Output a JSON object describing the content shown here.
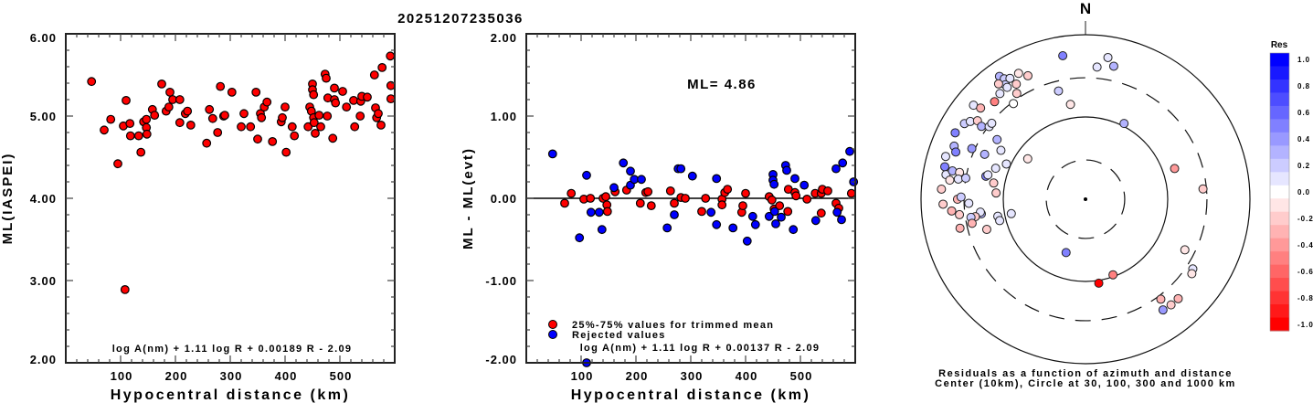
{
  "title": "20251207235036",
  "chart_data": [
    {
      "type": "scatter",
      "name": "magnitude-vs-distance",
      "xlabel": "Hypocentral distance (km)",
      "ylabel": "ML(IASPEI)",
      "xlim": [
        0,
        600
      ],
      "ylim": [
        2.0,
        6.0
      ],
      "xticks": [
        100,
        200,
        300,
        400,
        500
      ],
      "xtick_labels": [
        "100",
        "200",
        "300",
        "400",
        "500"
      ],
      "yticks": [
        2.0,
        3.0,
        4.0,
        5.0,
        6.0
      ],
      "ytick_labels": [
        "2.00",
        "3.00",
        "4.00",
        "5.00",
        "6.00"
      ],
      "formula": "log A(nm) + 1.11 log R + 0.00189 R - 2.09",
      "point_color": "#ff0000",
      "points": [
        [
          47,
          5.42
        ],
        [
          70,
          4.83
        ],
        [
          82,
          4.96
        ],
        [
          95,
          4.42
        ],
        [
          105,
          4.88
        ],
        [
          108,
          2.89
        ],
        [
          110,
          5.19
        ],
        [
          117,
          4.91
        ],
        [
          118,
          4.76
        ],
        [
          133,
          4.76
        ],
        [
          137,
          4.56
        ],
        [
          142,
          4.93
        ],
        [
          147,
          4.96
        ],
        [
          147,
          4.86
        ],
        [
          148,
          4.78
        ],
        [
          158,
          5.08
        ],
        [
          162,
          5.01
        ],
        [
          175,
          5.39
        ],
        [
          183,
          5.06
        ],
        [
          188,
          5.11
        ],
        [
          190,
          5.29
        ],
        [
          195,
          5.2
        ],
        [
          208,
          4.92
        ],
        [
          208,
          5.2
        ],
        [
          218,
          5.03
        ],
        [
          222,
          5.06
        ],
        [
          228,
          4.89
        ],
        [
          257,
          4.67
        ],
        [
          262,
          5.08
        ],
        [
          268,
          4.97
        ],
        [
          277,
          4.8
        ],
        [
          282,
          5.36
        ],
        [
          288,
          5.0
        ],
        [
          290,
          5.01
        ],
        [
          303,
          5.29
        ],
        [
          320,
          4.87
        ],
        [
          325,
          5.03
        ],
        [
          337,
          4.87
        ],
        [
          347,
          5.29
        ],
        [
          350,
          4.72
        ],
        [
          355,
          5.03
        ],
        [
          357,
          4.98
        ],
        [
          362,
          5.11
        ],
        [
          367,
          5.17
        ],
        [
          377,
          4.69
        ],
        [
          393,
          4.93
        ],
        [
          395,
          4.98
        ],
        [
          400,
          5.11
        ],
        [
          402,
          4.56
        ],
        [
          413,
          4.87
        ],
        [
          417,
          4.76
        ],
        [
          442,
          4.87
        ],
        [
          445,
          5.11
        ],
        [
          448,
          5.06
        ],
        [
          450,
          5.39
        ],
        [
          450,
          5.32
        ],
        [
          452,
          5.26
        ],
        [
          452,
          4.98
        ],
        [
          453,
          4.92
        ],
        [
          455,
          4.79
        ],
        [
          462,
          5.01
        ],
        [
          465,
          4.87
        ],
        [
          473,
          5.51
        ],
        [
          475,
          5.46
        ],
        [
          477,
          5.0
        ],
        [
          478,
          5.22
        ],
        [
          487,
          4.73
        ],
        [
          490,
          5.34
        ],
        [
          490,
          5.2
        ],
        [
          492,
          5.16
        ],
        [
          505,
          5.3
        ],
        [
          512,
          5.11
        ],
        [
          525,
          5.19
        ],
        [
          527,
          4.87
        ],
        [
          537,
          5.0
        ],
        [
          538,
          5.18
        ],
        [
          540,
          5.24
        ],
        [
          550,
          5.23
        ],
        [
          563,
          5.5
        ],
        [
          565,
          5.1
        ],
        [
          567,
          4.98
        ],
        [
          570,
          5.03
        ],
        [
          575,
          4.89
        ],
        [
          577,
          5.59
        ],
        [
          592,
          5.73
        ],
        [
          593,
          5.37
        ],
        [
          593,
          5.21
        ]
      ]
    },
    {
      "type": "scatter",
      "name": "residual-vs-distance",
      "xlabel": "Hypocentral distance (km)",
      "ylabel": "ML - ML(evt)",
      "xlim": [
        0,
        600
      ],
      "ylim": [
        -2.0,
        2.0
      ],
      "xticks": [
        100,
        200,
        300,
        400,
        500
      ],
      "xtick_labels": [
        "100",
        "200",
        "300",
        "400",
        "500"
      ],
      "yticks": [
        -2.0,
        -1.0,
        0.0,
        1.0,
        2.0
      ],
      "ytick_labels": [
        "-2.00",
        "-1.00",
        "0.00",
        "1.00",
        "2.00"
      ],
      "annotation": "ML= 4.86",
      "formula": "log A(nm) + 1.11 log R + 0.00137 R - 2.09",
      "legend": [
        {
          "label": "25%-75% values for trimmed mean",
          "color": "#ff0000"
        },
        {
          "label": "Rejected values",
          "color": "#0000ff"
        }
      ],
      "legend_position": "bottom-left",
      "series": [
        {
          "name": "25%-75% values for trimmed mean",
          "color": "#ff0000",
          "points": [
            [
              70,
              -0.06
            ],
            [
              82,
              0.06
            ],
            [
              105,
              -0.01
            ],
            [
              117,
              0.0
            ],
            [
              140,
              0.0
            ],
            [
              145,
              0.02
            ],
            [
              147,
              -0.08
            ],
            [
              148,
              -0.16
            ],
            [
              162,
              0.08
            ],
            [
              183,
              0.1
            ],
            [
              208,
              -0.06
            ],
            [
              218,
              0.07
            ],
            [
              222,
              0.08
            ],
            [
              228,
              -0.09
            ],
            [
              263,
              0.09
            ],
            [
              270,
              -0.06
            ],
            [
              282,
              0.01
            ],
            [
              290,
              0.0
            ],
            [
              320,
              -0.16
            ],
            [
              327,
              0.0
            ],
            [
              357,
              -0.01
            ],
            [
              357,
              -0.08
            ],
            [
              362,
              0.07
            ],
            [
              367,
              0.11
            ],
            [
              393,
              -0.17
            ],
            [
              395,
              -0.09
            ],
            [
              400,
              0.06
            ],
            [
              443,
              0.02
            ],
            [
              448,
              -0.02
            ],
            [
              452,
              -0.13
            ],
            [
              462,
              -0.09
            ],
            [
              477,
              -0.16
            ],
            [
              478,
              0.11
            ],
            [
              490,
              0.07
            ],
            [
              492,
              0.03
            ],
            [
              512,
              -0.01
            ],
            [
              527,
              0.06
            ],
            [
              538,
              -0.18
            ],
            [
              538,
              0.06
            ],
            [
              540,
              0.11
            ],
            [
              550,
              0.09
            ],
            [
              565,
              -0.06
            ],
            [
              570,
              -0.12
            ],
            [
              593,
              0.06
            ]
          ]
        },
        {
          "name": "Rejected values",
          "color": "#0000ff",
          "points": [
            [
              48,
              0.54
            ],
            [
              97,
              -0.48
            ],
            [
              110,
              0.28
            ],
            [
              110,
              -2.0
            ],
            [
              118,
              -0.17
            ],
            [
              133,
              -0.17
            ],
            [
              138,
              -0.38
            ],
            [
              160,
              0.13
            ],
            [
              177,
              0.43
            ],
            [
              190,
              0.33
            ],
            [
              190,
              0.16
            ],
            [
              197,
              0.23
            ],
            [
              210,
              0.23
            ],
            [
              257,
              -0.36
            ],
            [
              270,
              -0.2
            ],
            [
              277,
              0.36
            ],
            [
              282,
              0.36
            ],
            [
              303,
              0.27
            ],
            [
              337,
              -0.17
            ],
            [
              347,
              -0.32
            ],
            [
              347,
              0.24
            ],
            [
              377,
              -0.36
            ],
            [
              403,
              -0.52
            ],
            [
              413,
              -0.22
            ],
            [
              418,
              -0.32
            ],
            [
              443,
              -0.22
            ],
            [
              450,
              0.29
            ],
            [
              450,
              0.22
            ],
            [
              452,
              0.17
            ],
            [
              453,
              -0.16
            ],
            [
              455,
              -0.31
            ],
            [
              465,
              -0.23
            ],
            [
              473,
              0.4
            ],
            [
              475,
              0.34
            ],
            [
              487,
              -0.38
            ],
            [
              490,
              0.24
            ],
            [
              507,
              0.16
            ],
            [
              528,
              -0.27
            ],
            [
              565,
              0.36
            ],
            [
              567,
              -0.17
            ],
            [
              575,
              -0.26
            ],
            [
              577,
              0.43
            ],
            [
              590,
              0.57
            ],
            [
              597,
              0.2
            ]
          ]
        }
      ]
    },
    {
      "type": "scatter",
      "name": "residual-azimuth-distance",
      "north_label": "N",
      "caption_line1": "Residuals as a function of azimuth and distance",
      "caption_line2": "Center (10km), Circle at 30, 100, 300 and 1000 km",
      "center_km": 10,
      "circles_km": [
        30,
        100,
        300,
        1000
      ],
      "circle_styles": [
        "dashed",
        "solid",
        "dashed",
        "solid"
      ],
      "colorbar": {
        "title": "Res",
        "range": [
          -1.0,
          1.0
        ],
        "ticks": [
          1.0,
          0.8,
          0.6,
          0.4,
          0.2,
          0.0,
          -0.2,
          -0.4,
          -0.6,
          -0.8,
          -1.0
        ],
        "tick_labels": [
          "1.0",
          "0.8",
          "0.6",
          "0.4",
          "0.2",
          "0.0",
          "-0.2",
          "-0.4",
          "-0.6",
          "-0.8",
          "-1.0"
        ],
        "positive_color": "#0000ff",
        "negative_color": "#ff0000",
        "zero_color": "#ffffff"
      },
      "points_az_dist_res": [
        [
          332,
          541,
          -0.15
        ],
        [
          335,
          453,
          -0.2
        ],
        [
          325,
          590,
          -0.15
        ],
        [
          325,
          666,
          0.25
        ],
        [
          326,
          584,
          0.2
        ],
        [
          325,
          500,
          0.2
        ],
        [
          325,
          457,
          0.05
        ],
        [
          323,
          570,
          -0.2
        ],
        [
          328,
          541,
          0.05
        ],
        [
          329,
          430,
          -0.2
        ],
        [
          327,
          342,
          -0.2
        ],
        [
          321,
          450,
          0.05
        ],
        [
          317,
          418,
          -0.5
        ],
        [
          323,
          286,
          0.0
        ],
        [
          310,
          600,
          0.05
        ],
        [
          311,
          490,
          -0.3
        ],
        [
          302,
          544,
          0.2
        ],
        [
          304,
          490,
          0.05
        ],
        [
          306,
          420,
          -0.2
        ],
        [
          297,
          600,
          0.5
        ],
        [
          305,
          350,
          0.25
        ],
        [
          307,
          293,
          0.05
        ],
        [
          309,
          293,
          0.05
        ],
        [
          304,
          198,
          0.25
        ],
        [
          300,
          154,
          0.05
        ],
        [
          305,
          72,
          -0.15
        ],
        [
          292,
          528,
          0.25
        ],
        [
          290,
          477,
          0.45
        ],
        [
          294,
          326,
          0.4
        ],
        [
          294,
          220,
          0.25
        ],
        [
          287,
          600,
          0.05
        ],
        [
          283,
          570,
          0.5
        ],
        [
          280,
          528,
          0.05
        ],
        [
          282,
          451,
          0.25
        ],
        [
          282,
          368,
          -0.15
        ],
        [
          278,
          464,
          -0.15
        ],
        [
          279,
          368,
          0.05
        ],
        [
          280,
          301,
          0.2
        ],
        [
          283,
          175,
          0.5
        ],
        [
          284,
          167,
          0.05
        ],
        [
          289,
          143,
          0.05
        ],
        [
          294,
          113,
          0.05
        ],
        [
          280,
          136,
          -0.2
        ],
        [
          274,
          123,
          -0.2
        ],
        [
          274,
          570,
          -0.2
        ],
        [
          270,
          360,
          -0.3
        ],
        [
          271,
          326,
          0.15
        ],
        [
          268,
          263,
          0.1
        ],
        [
          262,
          190,
          0.3
        ],
        [
          263,
          194,
          0.05
        ],
        [
          259,
          122,
          0.05
        ],
        [
          261,
          227,
          -0.2
        ],
        [
          268,
          541,
          -0.2
        ],
        [
          265,
          430,
          -0.3
        ],
        [
          263,
          350,
          -0.2
        ],
        [
          261,
          257,
          0.2
        ],
        [
          259,
          83,
          0.05
        ],
        [
          253,
          180,
          -0.2
        ],
        [
          256,
          119,
          0.05
        ],
        [
          257,
          368,
          -0.3
        ],
        [
          258,
          257,
          -0.3
        ],
        [
          351,
          584,
          0.5
        ],
        [
          9,
          555,
          0.1
        ],
        [
          5,
          410,
          0.05
        ],
        [
          12,
          450,
          0.3
        ],
        [
          346,
          227,
          0.15
        ],
        [
          351,
          147,
          -0.1
        ],
        [
          27,
          108,
          0.3
        ],
        [
          71,
          140,
          -0.4
        ],
        [
          85,
          272,
          -0.2
        ],
        [
          117,
          227,
          -0.15
        ],
        [
          123,
          360,
          0.05
        ],
        [
          125,
          379,
          -0.1
        ],
        [
          137,
          450,
          -0.3
        ],
        [
          143,
          333,
          -0.3
        ],
        [
          141,
          450,
          -0.2
        ],
        [
          145,
          440,
          0.35
        ],
        [
          200,
          49,
          0.45
        ],
        [
          160,
          95,
          -0.5
        ],
        [
          171,
          108,
          -1.0
        ]
      ]
    }
  ]
}
